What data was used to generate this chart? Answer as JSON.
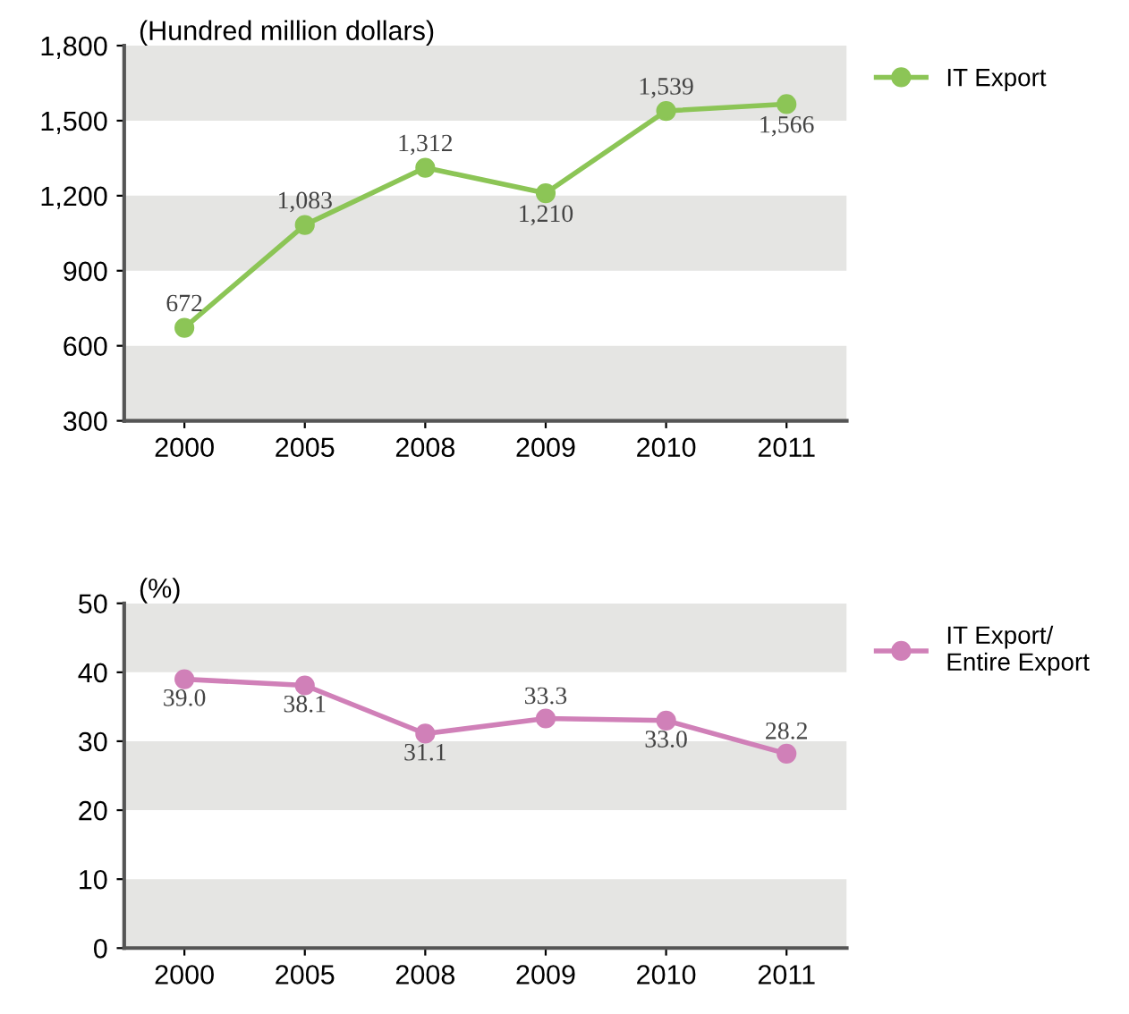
{
  "chart_data": [
    {
      "type": "line",
      "ylabel": "(Hundred million dollars)",
      "categories": [
        "2000",
        "2005",
        "2008",
        "2009",
        "2010",
        "2011"
      ],
      "series": [
        {
          "name": "IT Export",
          "color": "#8cc556",
          "values": [
            672,
            1083,
            1312,
            1210,
            1539,
            1566
          ]
        }
      ],
      "value_labels": [
        "672",
        "1,083",
        "1,312",
        "1,210",
        "1,539",
        "1,566"
      ],
      "ylim": [
        300,
        1800
      ],
      "yticks": [
        {
          "value": 300,
          "label": "300"
        },
        {
          "value": 600,
          "label": "600"
        },
        {
          "value": 900,
          "label": "900"
        },
        {
          "value": 1200,
          "label": "1,200"
        },
        {
          "value": 1500,
          "label": "1,500"
        },
        {
          "value": 1800,
          "label": "1,800"
        }
      ],
      "bands": [
        {
          "axis": "y",
          "from": 300,
          "to": 600,
          "color": "#e5e5e3"
        },
        {
          "axis": "y",
          "from": 900,
          "to": 1200,
          "color": "#e5e5e3"
        },
        {
          "axis": "y",
          "from": 1500,
          "to": 1800,
          "color": "#e5e5e3"
        }
      ],
      "marker": "circle",
      "line_style": "solid",
      "legend": "top right",
      "grid": false
    },
    {
      "type": "line",
      "ylabel": "(%)",
      "categories": [
        "2000",
        "2005",
        "2008",
        "2009",
        "2010",
        "2011"
      ],
      "series": [
        {
          "name": "IT Export/\nEntire Export",
          "color": "#d080b8",
          "values": [
            39.0,
            38.1,
            31.1,
            33.3,
            33.0,
            28.2
          ]
        }
      ],
      "value_labels": [
        "39.0",
        "38.1",
        "31.1",
        "33.3",
        "33.0",
        "28.2"
      ],
      "ylim": [
        0,
        50
      ],
      "yticks": [
        0,
        10,
        20,
        30,
        40,
        50
      ],
      "bands": [
        {
          "axis": "y",
          "from": 0,
          "to": 10,
          "color": "#e5e5e3"
        },
        {
          "axis": "y",
          "from": 20,
          "to": 30,
          "color": "#e5e5e3"
        },
        {
          "axis": "y",
          "from": 40,
          "to": 50,
          "color": "#e5e5e3"
        }
      ],
      "marker": "circle",
      "line_style": "solid",
      "legend": "top right",
      "grid": false
    }
  ]
}
